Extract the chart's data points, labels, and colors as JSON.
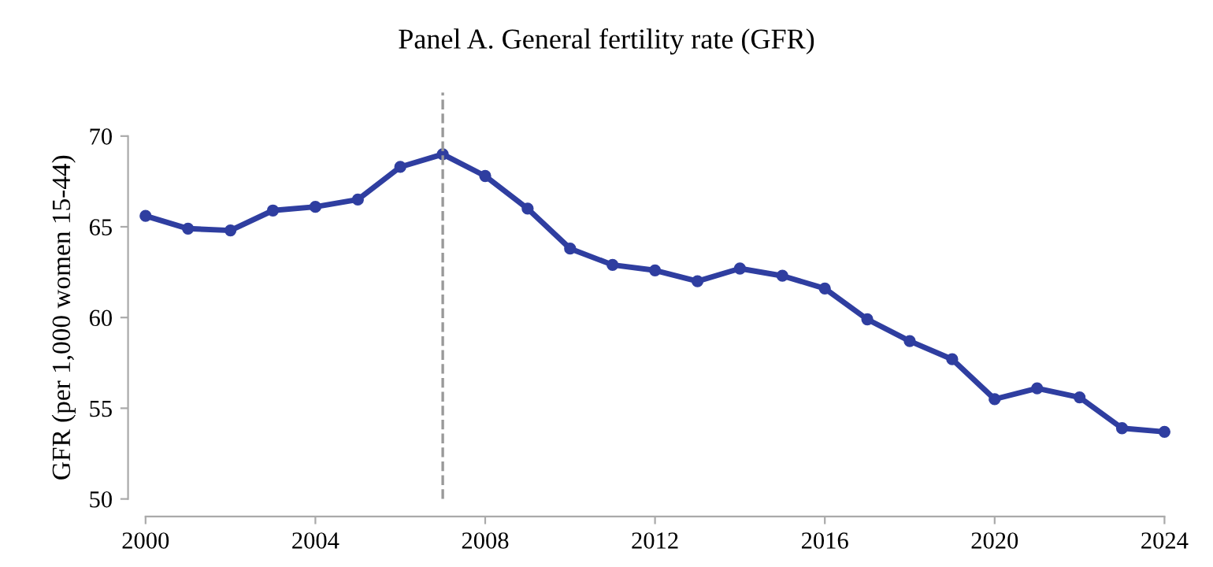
{
  "chart_data": {
    "type": "line",
    "title": "Panel A. General fertility rate (GFR)",
    "ylabel": "GFR (per 1,000 women 15-44)",
    "x": [
      2000,
      2001,
      2002,
      2003,
      2004,
      2005,
      2006,
      2007,
      2008,
      2009,
      2010,
      2011,
      2012,
      2013,
      2014,
      2015,
      2016,
      2017,
      2018,
      2019,
      2020,
      2021,
      2022,
      2023,
      2024
    ],
    "series": [
      {
        "color": "#2f3ea0",
        "values": [
          65.6,
          64.9,
          64.8,
          65.9,
          66.1,
          66.5,
          68.3,
          69.0,
          67.8,
          66.0,
          63.8,
          62.9,
          62.6,
          62.0,
          62.7,
          62.3,
          61.6,
          59.9,
          58.7,
          57.7,
          55.5,
          56.1,
          55.6,
          53.9,
          53.7
        ]
      }
    ],
    "xlim": [
      2000,
      2024
    ],
    "xticks": [
      2000,
      2004,
      2008,
      2012,
      2016,
      2020,
      2024
    ],
    "ylim": [
      50,
      70
    ],
    "yticks": [
      50,
      55,
      60,
      65,
      70
    ],
    "ref_lines": [
      {
        "axis": "x",
        "value": 2007,
        "color": "#999999",
        "line_style": "dashed"
      }
    ],
    "grid": false,
    "marker": "circle",
    "line_style": "solid"
  }
}
